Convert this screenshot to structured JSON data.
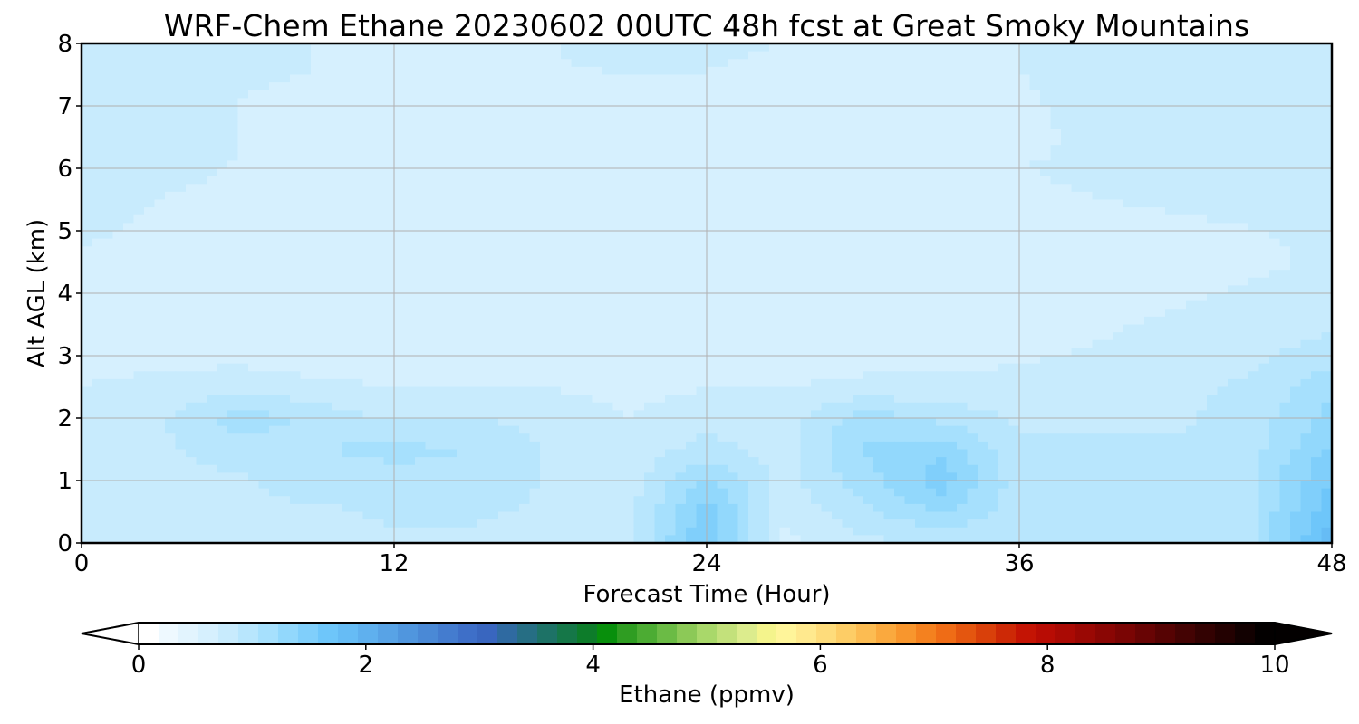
{
  "chart_data": {
    "type": "heatmap",
    "title": "WRF-Chem Ethane  20230602 00UTC 48h fcst at Great Smoky Mountains",
    "xlabel": "Forecast Time (Hour)",
    "ylabel": "Alt AGL (km)",
    "xlim": [
      0,
      48
    ],
    "ylim": [
      0,
      8
    ],
    "x_ticks": [
      "0",
      "12",
      "24",
      "36",
      "48"
    ],
    "y_ticks": [
      "0",
      "1",
      "2",
      "3",
      "4",
      "5",
      "6",
      "7",
      "8"
    ],
    "grid": true,
    "field": {
      "x": [
        0,
        3,
        6,
        9,
        12,
        15,
        18,
        21,
        24,
        27,
        30,
        33,
        36,
        39,
        42,
        45,
        48
      ],
      "y": [
        0,
        0.5,
        1,
        1.5,
        2,
        2.5,
        3,
        3.5,
        4,
        4.5,
        5,
        5.5,
        6,
        6.5,
        7,
        7.5,
        8
      ],
      "units": "ppmv",
      "note_values": "estimated ethane mixing ratio; rows from y=0 upward",
      "values": [
        [
          0.85,
          0.85,
          0.85,
          0.85,
          0.85,
          0.85,
          0.85,
          0.85,
          1.6,
          0.65,
          0.85,
          0.85,
          0.9,
          1.0,
          1.0,
          1.05,
          1.9
        ],
        [
          0.85,
          0.85,
          0.85,
          0.85,
          0.9,
          0.9,
          0.85,
          0.8,
          1.5,
          0.75,
          1.0,
          1.25,
          0.95,
          1.0,
          1.0,
          1.05,
          1.7
        ],
        [
          0.8,
          0.85,
          0.85,
          0.95,
          1.0,
          1.0,
          0.85,
          0.8,
          1.25,
          0.8,
          1.15,
          1.5,
          0.95,
          0.95,
          0.95,
          1.05,
          1.6
        ],
        [
          0.75,
          0.85,
          0.95,
          1.05,
          1.1,
          1.05,
          0.85,
          0.75,
          0.95,
          0.8,
          1.25,
          1.35,
          0.9,
          0.9,
          0.9,
          1.0,
          1.45
        ],
        [
          0.7,
          0.85,
          1.15,
          1.0,
          0.85,
          0.9,
          0.8,
          0.7,
          0.8,
          0.8,
          1.15,
          1.0,
          0.85,
          0.85,
          0.85,
          0.95,
          1.3
        ],
        [
          0.7,
          0.75,
          0.8,
          0.75,
          0.7,
          0.7,
          0.7,
          0.65,
          0.7,
          0.7,
          0.75,
          0.75,
          0.75,
          0.8,
          0.85,
          0.9,
          1.2
        ],
        [
          0.65,
          0.65,
          0.65,
          0.6,
          0.55,
          0.55,
          0.55,
          0.55,
          0.6,
          0.6,
          0.62,
          0.65,
          0.68,
          0.72,
          0.78,
          0.85,
          0.95
        ],
        [
          0.65,
          0.62,
          0.6,
          0.57,
          0.55,
          0.55,
          0.55,
          0.55,
          0.56,
          0.58,
          0.6,
          0.62,
          0.65,
          0.68,
          0.72,
          0.78,
          0.85
        ],
        [
          0.65,
          0.62,
          0.6,
          0.6,
          0.6,
          0.6,
          0.6,
          0.6,
          0.6,
          0.6,
          0.62,
          0.6,
          0.62,
          0.65,
          0.68,
          0.72,
          0.75
        ],
        [
          0.68,
          0.65,
          0.62,
          0.62,
          0.62,
          0.62,
          0.62,
          0.62,
          0.62,
          0.62,
          0.65,
          0.62,
          0.62,
          0.62,
          0.65,
          0.68,
          0.72
        ],
        [
          0.72,
          0.68,
          0.65,
          0.64,
          0.64,
          0.64,
          0.64,
          0.64,
          0.64,
          0.64,
          0.66,
          0.64,
          0.66,
          0.66,
          0.68,
          0.7,
          0.72
        ],
        [
          0.75,
          0.7,
          0.68,
          0.65,
          0.64,
          0.64,
          0.64,
          0.64,
          0.65,
          0.65,
          0.65,
          0.64,
          0.68,
          0.7,
          0.72,
          0.73,
          0.74
        ],
        [
          0.78,
          0.72,
          0.7,
          0.66,
          0.64,
          0.64,
          0.64,
          0.64,
          0.66,
          0.66,
          0.64,
          0.62,
          0.7,
          0.72,
          0.74,
          0.74,
          0.75
        ],
        [
          0.8,
          0.75,
          0.7,
          0.65,
          0.62,
          0.62,
          0.63,
          0.64,
          0.66,
          0.66,
          0.62,
          0.6,
          0.68,
          0.72,
          0.74,
          0.74,
          0.74
        ],
        [
          0.82,
          0.76,
          0.7,
          0.66,
          0.66,
          0.66,
          0.66,
          0.66,
          0.68,
          0.68,
          0.62,
          0.6,
          0.68,
          0.74,
          0.76,
          0.75,
          0.74
        ],
        [
          0.84,
          0.78,
          0.72,
          0.7,
          0.7,
          0.7,
          0.7,
          0.7,
          0.7,
          0.68,
          0.64,
          0.62,
          0.7,
          0.76,
          0.8,
          0.76,
          0.74
        ],
        [
          0.85,
          0.78,
          0.72,
          0.7,
          0.7,
          0.7,
          0.7,
          0.72,
          0.72,
          0.7,
          0.66,
          0.65,
          0.7,
          0.76,
          0.8,
          0.76,
          0.74
        ]
      ]
    },
    "colorbar": {
      "label": "Ethane  (ppmv)",
      "range": [
        0,
        10
      ],
      "extend": "both",
      "ticks": [
        "0",
        "2",
        "4",
        "6",
        "8",
        "10"
      ],
      "colors": [
        "#ffffff",
        "#eef9ff",
        "#e2f4fe",
        "#d6f0fe",
        "#c8ebfd",
        "#b8e6fd",
        "#a6e0fd",
        "#92d8fc",
        "#80cffb",
        "#6ec6fa",
        "#66bcf5",
        "#5fb0ee",
        "#58a3e6",
        "#5096de",
        "#4a89d6",
        "#447ccf",
        "#3e6fc8",
        "#3966bf",
        "#2f6aa1",
        "#266e84",
        "#1d7266",
        "#157748",
        "#0d7c2a",
        "#088f0c",
        "#2f9d22",
        "#4cac33",
        "#6bbb45",
        "#8cc957",
        "#a9d86a",
        "#c3e17b",
        "#dcec8d",
        "#f4f48c",
        "#fff59a",
        "#ffe98e",
        "#fedc7b",
        "#fdcd66",
        "#fcbc52",
        "#faa93e",
        "#f8962d",
        "#f4811f",
        "#ef6c16",
        "#e4560f",
        "#d9400a",
        "#cd2906",
        "#c41404",
        "#b80c04",
        "#aa0a04",
        "#9a0804",
        "#8a0604",
        "#7a0504",
        "#680404",
        "#560303",
        "#440303",
        "#330202",
        "#230101",
        "#120101",
        "#030000"
      ]
    }
  }
}
